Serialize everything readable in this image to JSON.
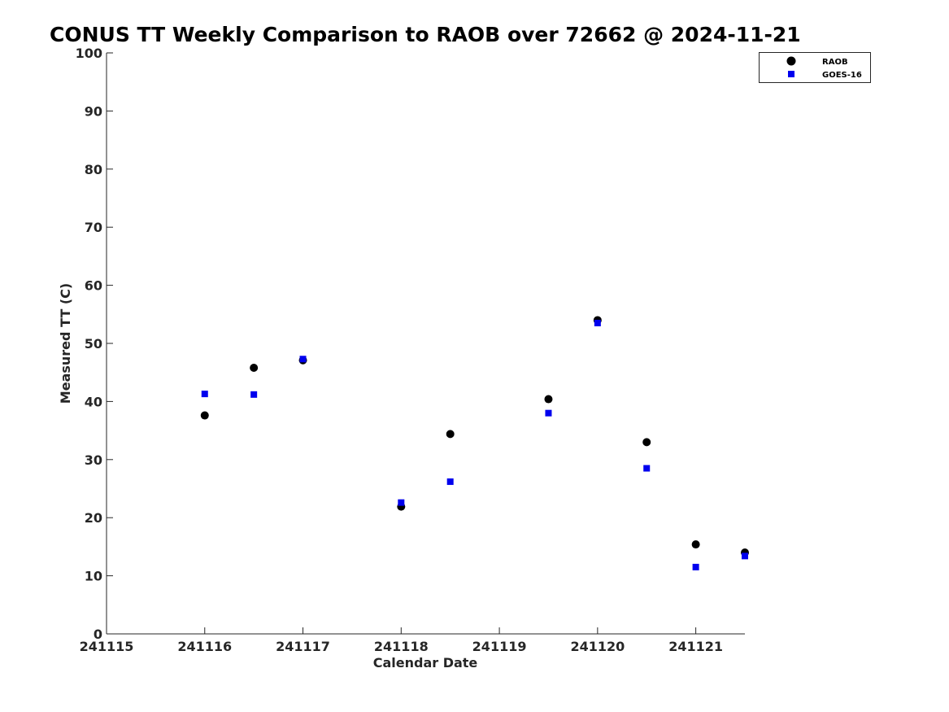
{
  "chart_data": {
    "type": "scatter",
    "title": "CONUS TT Weekly Comparison to RAOB over 72662 @ 2024-11-21",
    "xlabel": "Calendar Date",
    "ylabel": "Measured TT (C)",
    "xlim": [
      241115,
      241121.5
    ],
    "ylim": [
      0,
      100
    ],
    "x_ticks": [
      241115,
      241116,
      241117,
      241118,
      241119,
      241120,
      241121
    ],
    "x_tick_labels": [
      "241115",
      "241116",
      "241117",
      "241118",
      "241119",
      "241120",
      "241121"
    ],
    "y_ticks": [
      0,
      10,
      20,
      30,
      40,
      50,
      60,
      70,
      80,
      90,
      100
    ],
    "y_tick_labels": [
      "0",
      "10",
      "20",
      "30",
      "40",
      "50",
      "60",
      "70",
      "80",
      "90",
      "100"
    ],
    "grid": false,
    "legend_position": "top-right",
    "series": [
      {
        "name": "RAOB",
        "marker": "circle",
        "color": "#000000",
        "x": [
          241116,
          241116.5,
          241117,
          241118,
          241118.5,
          241119.5,
          241120,
          241120.5,
          241121,
          241121.5
        ],
        "y": [
          37.6,
          45.8,
          47.1,
          21.9,
          34.4,
          40.4,
          54.0,
          33.0,
          15.4,
          14.0
        ]
      },
      {
        "name": "GOES-16",
        "marker": "square",
        "color": "#0000ee",
        "x": [
          241116,
          241116.5,
          241117,
          241118,
          241118.5,
          241119.5,
          241120,
          241120.5,
          241121,
          241121.5
        ],
        "y": [
          41.3,
          41.2,
          47.3,
          22.6,
          26.2,
          38.0,
          53.5,
          28.5,
          11.5,
          13.4
        ]
      }
    ]
  }
}
